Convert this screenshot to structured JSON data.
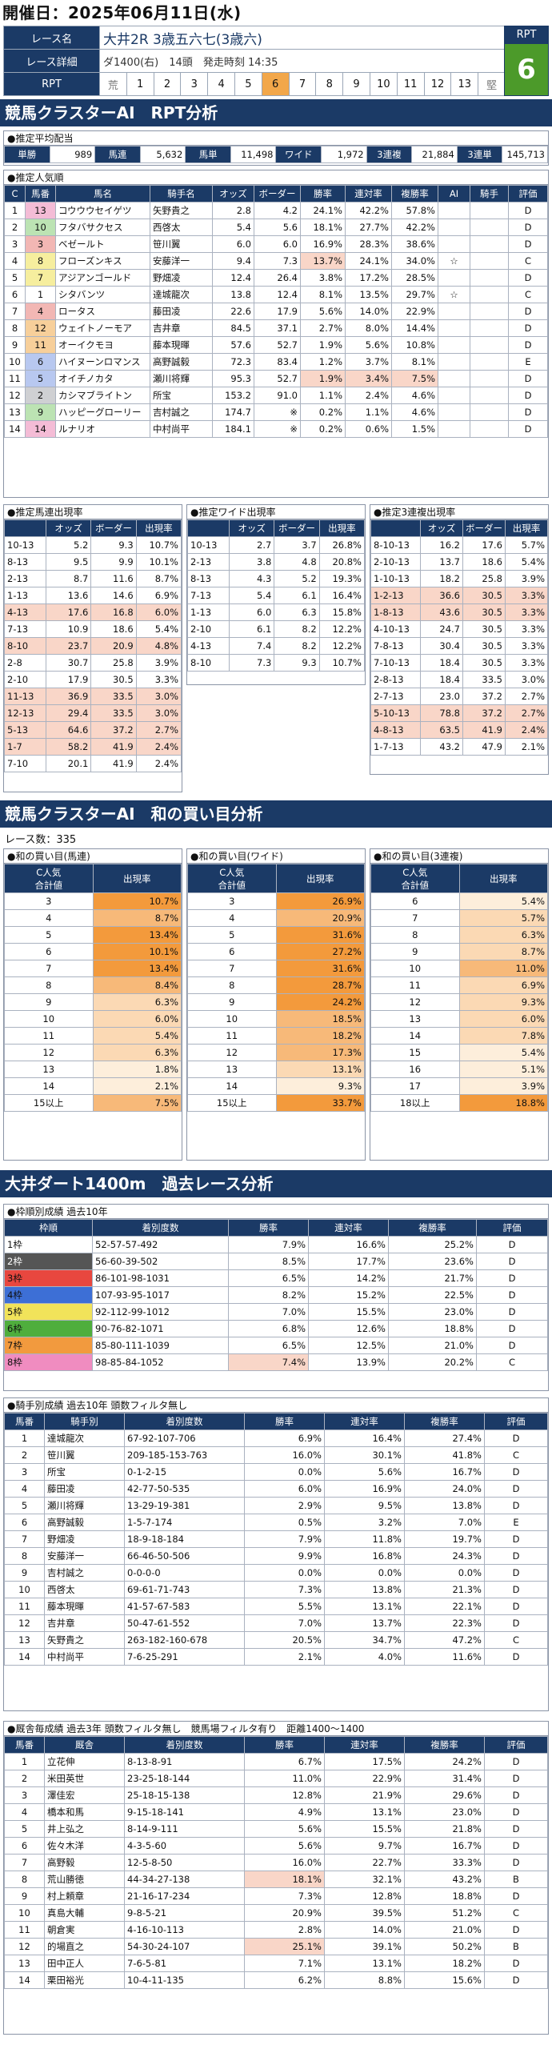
{
  "date": "開催日：2025年06月11日(水)",
  "race": {
    "label_name": "レース名",
    "name": "大井2R 3歳五六七(3歳六)",
    "label_detail": "レース詳細",
    "course": "ダ1400(右)",
    "heads": "14頭",
    "start": "発走時刻 14:35",
    "label_rpt": "RPT",
    "nums": [
      "荒",
      "1",
      "2",
      "3",
      "4",
      "5",
      "6",
      "7",
      "8",
      "9",
      "10",
      "11",
      "12",
      "13",
      "堅"
    ],
    "rpt_head": "RPT",
    "rpt_value": "6"
  },
  "s1": "競馬クラスターAI　RPT分析",
  "payout": {
    "title": "推定平均配当",
    "items": [
      [
        "単勝",
        "989"
      ],
      [
        "馬連",
        "5,632"
      ],
      [
        "馬単",
        "11,498"
      ],
      [
        "ワイド",
        "1,972"
      ],
      [
        "3連複",
        "21,884"
      ],
      [
        "3連単",
        "145,713"
      ]
    ]
  },
  "pop": {
    "title": "推定人気順",
    "headers": [
      "C",
      "馬番",
      "馬名",
      "騎手名",
      "オッズ",
      "ボーダー",
      "勝率",
      "連対率",
      "複勝率",
      "AI",
      "騎手",
      "評価"
    ],
    "rows": [
      [
        "1",
        "13",
        "コウウウセイゲツ",
        "矢野貴之",
        "2.8",
        "4.2",
        "24.1%",
        "42.2%",
        "57.8%",
        "",
        "",
        "D"
      ],
      [
        "2",
        "10",
        "フタバサクセス",
        "西啓太",
        "5.4",
        "5.6",
        "18.1%",
        "27.7%",
        "42.2%",
        "",
        "",
        "D"
      ],
      [
        "3",
        "3",
        "ベゼールト",
        "笹川翼",
        "6.0",
        "6.0",
        "16.9%",
        "28.3%",
        "38.6%",
        "",
        "",
        "D"
      ],
      [
        "4",
        "8",
        "フローズンキス",
        "安藤洋一",
        "9.4",
        "7.3",
        "13.7%",
        "24.1%",
        "34.0%",
        "☆",
        "",
        "C"
      ],
      [
        "5",
        "7",
        "アジアンゴールド",
        "野畑凌",
        "12.4",
        "26.4",
        "3.8%",
        "17.2%",
        "28.5%",
        "",
        "",
        "D"
      ],
      [
        "6",
        "1",
        "シタバンツ",
        "達城龍次",
        "13.8",
        "12.4",
        "8.1%",
        "13.5%",
        "29.7%",
        "☆",
        "",
        "C"
      ],
      [
        "7",
        "4",
        "ロータス",
        "藤田凌",
        "22.6",
        "17.9",
        "5.6%",
        "14.0%",
        "22.9%",
        "",
        "",
        "D"
      ],
      [
        "8",
        "12",
        "ウェイトノーモア",
        "吉井章",
        "84.5",
        "37.1",
        "2.7%",
        "8.0%",
        "14.4%",
        "",
        "",
        "D"
      ],
      [
        "9",
        "11",
        "オーイクモヨ",
        "藤本現暉",
        "57.6",
        "52.7",
        "1.9%",
        "5.6%",
        "10.8%",
        "",
        "",
        "D"
      ],
      [
        "10",
        "6",
        "ハイヌーンロマンス",
        "高野誠毅",
        "72.3",
        "83.4",
        "1.2%",
        "3.7%",
        "8.1%",
        "",
        "",
        "E"
      ],
      [
        "11",
        "5",
        "オイチノカタ",
        "瀬川将輝",
        "95.3",
        "52.7",
        "1.9%",
        "3.4%",
        "7.5%",
        "",
        "",
        "D"
      ],
      [
        "12",
        "2",
        "カシマブライトン",
        "所宝",
        "153.2",
        "91.0",
        "1.1%",
        "2.4%",
        "4.6%",
        "",
        "",
        "D"
      ],
      [
        "13",
        "9",
        "ハッピーグローリー",
        "吉村誠之",
        "174.7",
        "※",
        "0.2%",
        "1.1%",
        "4.6%",
        "",
        "",
        "D"
      ],
      [
        "14",
        "14",
        "ルナリオ",
        "中村尚平",
        "184.1",
        "※",
        "0.2%",
        "0.6%",
        "1.5%",
        "",
        "",
        "D"
      ]
    ]
  },
  "umaren": {
    "title": "推定馬連出現率",
    "headers": [
      "",
      "オッズ",
      "ボーダー",
      "出現率"
    ],
    "rows": [
      [
        "10-13",
        "5.2",
        "9.3",
        "10.7%"
      ],
      [
        "8-13",
        "9.5",
        "9.9",
        "10.1%"
      ],
      [
        "2-13",
        "8.7",
        "11.6",
        "8.7%"
      ],
      [
        "1-13",
        "13.6",
        "14.6",
        "6.9%"
      ],
      [
        "4-13",
        "17.6",
        "16.8",
        "6.0%"
      ],
      [
        "7-13",
        "10.9",
        "18.6",
        "5.4%"
      ],
      [
        "8-10",
        "23.7",
        "20.9",
        "4.8%"
      ],
      [
        "2-8",
        "30.7",
        "25.8",
        "3.9%"
      ],
      [
        "2-10",
        "17.9",
        "30.5",
        "3.3%"
      ],
      [
        "11-13",
        "36.9",
        "33.5",
        "3.0%"
      ],
      [
        "12-13",
        "29.4",
        "33.5",
        "3.0%"
      ],
      [
        "5-13",
        "64.6",
        "37.2",
        "2.7%"
      ],
      [
        "1-7",
        "58.2",
        "41.9",
        "2.4%"
      ],
      [
        "7-10",
        "20.1",
        "41.9",
        "2.4%"
      ]
    ]
  },
  "wide": {
    "title": "推定ワイド出現率",
    "headers": [
      "",
      "オッズ",
      "ボーダー",
      "出現率"
    ],
    "rows": [
      [
        "10-13",
        "2.7",
        "3.7",
        "26.8%"
      ],
      [
        "2-13",
        "3.8",
        "4.8",
        "20.8%"
      ],
      [
        "8-13",
        "4.3",
        "5.2",
        "19.3%"
      ],
      [
        "7-13",
        "5.4",
        "6.1",
        "16.4%"
      ],
      [
        "1-13",
        "6.0",
        "6.3",
        "15.8%"
      ],
      [
        "2-10",
        "6.1",
        "8.2",
        "12.2%"
      ],
      [
        "4-13",
        "7.4",
        "8.2",
        "12.2%"
      ],
      [
        "8-10",
        "7.3",
        "9.3",
        "10.7%"
      ]
    ]
  },
  "trio": {
    "title": "推定3連複出現率",
    "headers": [
      "",
      "オッズ",
      "ボーダー",
      "出現率"
    ],
    "rows": [
      [
        "8-10-13",
        "16.2",
        "17.6",
        "5.7%"
      ],
      [
        "2-10-13",
        "13.7",
        "18.6",
        "5.4%"
      ],
      [
        "1-10-13",
        "18.2",
        "25.8",
        "3.9%"
      ],
      [
        "1-2-13",
        "36.6",
        "30.5",
        "3.3%"
      ],
      [
        "1-8-13",
        "43.6",
        "30.5",
        "3.3%"
      ],
      [
        "4-10-13",
        "24.7",
        "30.5",
        "3.3%"
      ],
      [
        "7-8-13",
        "30.4",
        "30.5",
        "3.3%"
      ],
      [
        "7-10-13",
        "18.4",
        "30.5",
        "3.3%"
      ],
      [
        "2-8-13",
        "18.4",
        "33.5",
        "3.0%"
      ],
      [
        "2-7-13",
        "23.0",
        "37.2",
        "2.7%"
      ],
      [
        "5-10-13",
        "78.8",
        "37.2",
        "2.7%"
      ],
      [
        "4-8-13",
        "63.5",
        "41.9",
        "2.4%"
      ],
      [
        "1-7-13",
        "43.2",
        "47.9",
        "2.1%"
      ]
    ]
  },
  "s2": "競馬クラスターAI　和の買い目分析",
  "race_count": "レース数：335",
  "sum_umaren": {
    "title": "和の買い目(馬連)",
    "h1": "C人気\n合計値",
    "h2": "出現率",
    "rows": [
      [
        "3",
        "10.7%"
      ],
      [
        "4",
        "8.7%"
      ],
      [
        "5",
        "13.4%"
      ],
      [
        "6",
        "10.1%"
      ],
      [
        "7",
        "13.4%"
      ],
      [
        "8",
        "8.4%"
      ],
      [
        "9",
        "6.3%"
      ],
      [
        "10",
        "6.0%"
      ],
      [
        "11",
        "5.4%"
      ],
      [
        "12",
        "6.3%"
      ],
      [
        "13",
        "1.8%"
      ],
      [
        "14",
        "2.1%"
      ],
      [
        "15以上",
        "7.5%"
      ]
    ]
  },
  "sum_wide": {
    "title": "和の買い目(ワイド)",
    "h1": "C人気\n合計値",
    "h2": "出現率",
    "rows": [
      [
        "3",
        "26.9%"
      ],
      [
        "4",
        "20.9%"
      ],
      [
        "5",
        "31.6%"
      ],
      [
        "6",
        "27.2%"
      ],
      [
        "7",
        "31.6%"
      ],
      [
        "8",
        "28.7%"
      ],
      [
        "9",
        "24.2%"
      ],
      [
        "10",
        "18.5%"
      ],
      [
        "11",
        "18.2%"
      ],
      [
        "12",
        "17.3%"
      ],
      [
        "13",
        "13.1%"
      ],
      [
        "14",
        "9.3%"
      ],
      [
        "15以上",
        "33.7%"
      ]
    ]
  },
  "sum_trio": {
    "title": "和の買い目(3連複)",
    "h1": "C人気\n合計値",
    "h2": "出現率",
    "rows": [
      [
        "6",
        "5.4%"
      ],
      [
        "7",
        "5.7%"
      ],
      [
        "8",
        "6.3%"
      ],
      [
        "9",
        "8.7%"
      ],
      [
        "10",
        "11.0%"
      ],
      [
        "11",
        "6.9%"
      ],
      [
        "12",
        "9.3%"
      ],
      [
        "13",
        "6.0%"
      ],
      [
        "14",
        "7.8%"
      ],
      [
        "15",
        "5.4%"
      ],
      [
        "16",
        "5.1%"
      ],
      [
        "17",
        "3.9%"
      ],
      [
        "18以上",
        "18.8%"
      ]
    ]
  },
  "s3": "大井ダート1400m　過去レース分析",
  "waku": {
    "title": "枠順別成績 過去10年",
    "headers": [
      "枠順",
      "着別度数",
      "勝率",
      "連対率",
      "複勝率",
      "評価"
    ],
    "rows": [
      [
        "1枠",
        "52-57-57-492",
        "7.9%",
        "16.6%",
        "25.2%",
        "D"
      ],
      [
        "2枠",
        "56-60-39-502",
        "8.5%",
        "17.7%",
        "23.6%",
        "D"
      ],
      [
        "3枠",
        "86-101-98-1031",
        "6.5%",
        "14.2%",
        "21.7%",
        "D"
      ],
      [
        "4枠",
        "107-93-95-1017",
        "8.2%",
        "15.2%",
        "22.5%",
        "D"
      ],
      [
        "5枠",
        "92-112-99-1012",
        "7.0%",
        "15.5%",
        "23.0%",
        "D"
      ],
      [
        "6枠",
        "90-76-82-1071",
        "6.8%",
        "12.6%",
        "18.8%",
        "D"
      ],
      [
        "7枠",
        "85-80-111-1039",
        "6.5%",
        "12.5%",
        "21.0%",
        "D"
      ],
      [
        "8枠",
        "98-85-84-1052",
        "7.4%",
        "13.9%",
        "20.2%",
        "C"
      ]
    ]
  },
  "jockey": {
    "title": "騎手別成績 過去10年 頭数フィルタ無し",
    "headers": [
      "馬番",
      "騎手別",
      "着別度数",
      "勝率",
      "連対率",
      "複勝率",
      "評価"
    ],
    "rows": [
      [
        "1",
        "達城龍次",
        "67-92-107-706",
        "6.9%",
        "16.4%",
        "27.4%",
        "D"
      ],
      [
        "2",
        "笹川翼",
        "209-185-153-763",
        "16.0%",
        "30.1%",
        "41.8%",
        "C"
      ],
      [
        "3",
        "所宝",
        "0-1-2-15",
        "0.0%",
        "5.6%",
        "16.7%",
        "D"
      ],
      [
        "4",
        "藤田凌",
        "42-77-50-535",
        "6.0%",
        "16.9%",
        "24.0%",
        "D"
      ],
      [
        "5",
        "瀬川将輝",
        "13-29-19-381",
        "2.9%",
        "9.5%",
        "13.8%",
        "D"
      ],
      [
        "6",
        "高野誠毅",
        "1-5-7-174",
        "0.5%",
        "3.2%",
        "7.0%",
        "E"
      ],
      [
        "7",
        "野畑凌",
        "18-9-18-184",
        "7.9%",
        "11.8%",
        "19.7%",
        "D"
      ],
      [
        "8",
        "安藤洋一",
        "66-46-50-506",
        "9.9%",
        "16.8%",
        "24.3%",
        "D"
      ],
      [
        "9",
        "吉村誠之",
        "0-0-0-0",
        "0.0%",
        "0.0%",
        "0.0%",
        "D"
      ],
      [
        "10",
        "西啓太",
        "69-61-71-743",
        "7.3%",
        "13.8%",
        "21.3%",
        "D"
      ],
      [
        "11",
        "藤本現暉",
        "41-57-67-583",
        "5.5%",
        "13.1%",
        "22.1%",
        "D"
      ],
      [
        "12",
        "吉井章",
        "50-47-61-552",
        "7.0%",
        "13.7%",
        "22.3%",
        "D"
      ],
      [
        "13",
        "矢野貴之",
        "263-182-160-678",
        "20.5%",
        "34.7%",
        "47.2%",
        "C"
      ],
      [
        "14",
        "中村尚平",
        "7-6-25-291",
        "2.1%",
        "4.0%",
        "11.6%",
        "D"
      ]
    ]
  },
  "trainer": {
    "title": "厩舎毎成績 過去3年 頭数フィルタ無し　競馬場フィルタ有り　距離1400〜1400",
    "headers": [
      "馬番",
      "厩舎",
      "着別度数",
      "勝率",
      "連対率",
      "複勝率",
      "評価"
    ],
    "rows": [
      [
        "1",
        "立花伸",
        "8-13-8-91",
        "6.7%",
        "17.5%",
        "24.2%",
        "D"
      ],
      [
        "2",
        "米田英世",
        "23-25-18-144",
        "11.0%",
        "22.9%",
        "31.4%",
        "D"
      ],
      [
        "3",
        "澤佳宏",
        "25-18-15-138",
        "12.8%",
        "21.9%",
        "29.6%",
        "D"
      ],
      [
        "4",
        "橋本和馬",
        "9-15-18-141",
        "4.9%",
        "13.1%",
        "23.0%",
        "D"
      ],
      [
        "5",
        "井上弘之",
        "8-14-9-111",
        "5.6%",
        "15.5%",
        "21.8%",
        "D"
      ],
      [
        "6",
        "佐々木洋",
        "4-3-5-60",
        "5.6%",
        "9.7%",
        "16.7%",
        "D"
      ],
      [
        "7",
        "高野毅",
        "12-5-8-50",
        "16.0%",
        "22.7%",
        "33.3%",
        "D"
      ],
      [
        "8",
        "荒山勝徳",
        "44-34-27-138",
        "18.1%",
        "32.1%",
        "43.2%",
        "B"
      ],
      [
        "9",
        "村上頼章",
        "21-16-17-234",
        "7.3%",
        "12.8%",
        "18.8%",
        "D"
      ],
      [
        "10",
        "真島大輔",
        "9-8-5-21",
        "20.9%",
        "39.5%",
        "51.2%",
        "C"
      ],
      [
        "11",
        "朝倉実",
        "4-16-10-113",
        "2.8%",
        "14.0%",
        "21.0%",
        "D"
      ],
      [
        "12",
        "的場直之",
        "54-30-24-107",
        "25.1%",
        "39.1%",
        "50.2%",
        "B"
      ],
      [
        "13",
        "田中正人",
        "7-6-5-81",
        "7.1%",
        "13.1%",
        "18.2%",
        "D"
      ],
      [
        "14",
        "栗田裕光",
        "10-4-11-135",
        "6.2%",
        "8.8%",
        "15.6%",
        "D"
      ]
    ]
  }
}
